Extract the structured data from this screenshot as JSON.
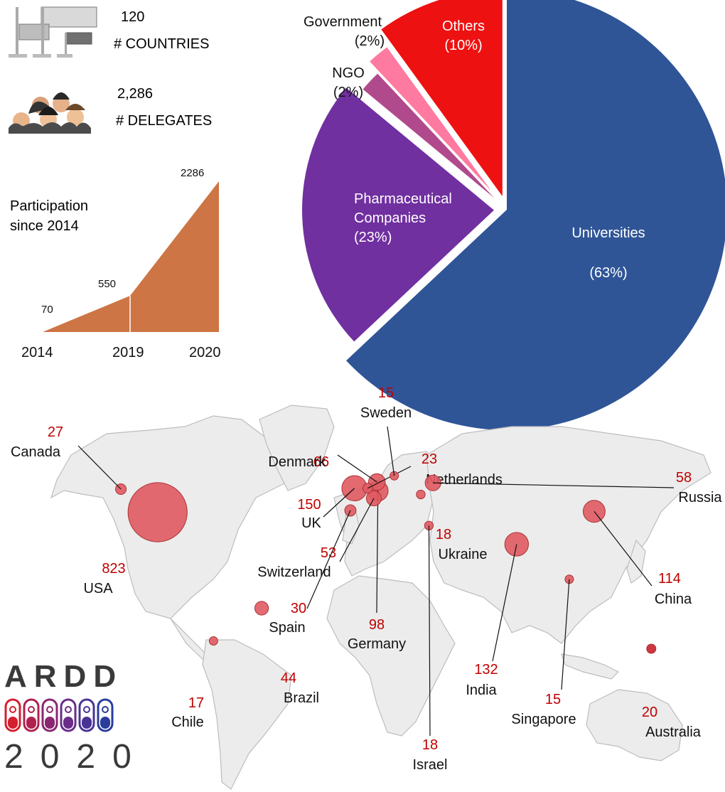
{
  "stats": {
    "countries_value": "120",
    "countries_label": "# COUNTRIES",
    "delegates_value": "2,286",
    "delegates_label": "# DELEGATES"
  },
  "participation": {
    "title_line1": "Participation",
    "title_line2": "since 2014"
  },
  "logo": {
    "word": "ARDD",
    "year": "2020",
    "colors": [
      "#d4202f",
      "#b02050",
      "#8a2770",
      "#6a2d8a",
      "#4a3395",
      "#2a3c9c"
    ]
  },
  "chart_data": [
    {
      "type": "area",
      "x": [
        "2014",
        "2019",
        "2020"
      ],
      "values": [
        70,
        550,
        2286
      ],
      "data_labels": [
        "70",
        "550",
        "2286"
      ],
      "color": "#cd7544"
    },
    {
      "type": "pie",
      "labels": [
        "Universities",
        "Pharmaceutical Companies",
        "NGO",
        "Government",
        "Others"
      ],
      "label_lines": [
        [
          "Universities"
        ],
        [
          "Pharmaceutical",
          "Companies"
        ],
        [
          "NGO"
        ],
        [
          "Government"
        ],
        [
          "Others"
        ]
      ],
      "pct_labels": [
        "(63%)",
        "(23%)",
        "(2%)",
        "(2%)",
        "(10%)"
      ],
      "values": [
        63,
        23,
        2,
        2,
        10
      ],
      "colors": [
        "#2f5597",
        "#7030a0",
        "#b04a8c",
        "#ff7aa0",
        "#ee1111"
      ]
    },
    {
      "type": "scatter",
      "label_color": "#c00000",
      "bubble_color": "#e05a62",
      "points": [
        {
          "country": "USA",
          "value": 823,
          "lon": -98,
          "lat": 39
        },
        {
          "country": "Canada",
          "value": 27,
          "lon": -116,
          "lat": 52
        },
        {
          "country": "UK",
          "value": 150,
          "lon": -1.5,
          "lat": 52.5
        },
        {
          "country": "Germany",
          "value": 98,
          "lon": 10,
          "lat": 51
        },
        {
          "country": "Denmark",
          "value": 66,
          "lon": 9.5,
          "lat": 56
        },
        {
          "country": "Switzerland",
          "value": 53,
          "lon": 8,
          "lat": 46.8
        },
        {
          "country": "Netherlands",
          "value": 23,
          "lon": 5,
          "lat": 52.5
        },
        {
          "country": "Sweden",
          "value": 15,
          "lon": 18,
          "lat": 59.5
        },
        {
          "country": "Spain",
          "value": 30,
          "lon": -3.5,
          "lat": 40
        },
        {
          "country": "Ukraine",
          "value": 18,
          "lon": 31,
          "lat": 49
        },
        {
          "country": "Israel",
          "value": 18,
          "lon": 35,
          "lat": 31.5
        },
        {
          "country": "Russia",
          "value": 58,
          "lon": 37,
          "lat": 55.5
        },
        {
          "country": "China",
          "value": 114,
          "lon": 116,
          "lat": 39.5
        },
        {
          "country": "India",
          "value": 132,
          "lon": 78,
          "lat": 21
        },
        {
          "country": "Singapore",
          "value": 15,
          "lon": 103.8,
          "lat": 1.3
        },
        {
          "country": "Australia",
          "value": 20,
          "lon": 144,
          "lat": -37.8
        },
        {
          "country": "Brazil",
          "value": 44,
          "lon": -47,
          "lat": -15
        },
        {
          "country": "Chile",
          "value": 17,
          "lon": -70.6,
          "lat": -33.4
        }
      ]
    }
  ]
}
